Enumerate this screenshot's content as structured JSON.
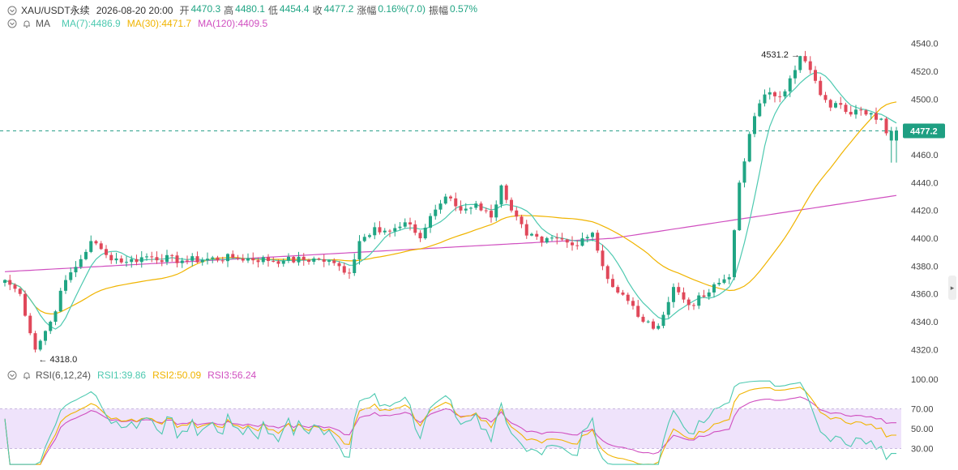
{
  "header": {
    "symbol": "XAU/USDT永续",
    "datetime": "2026-08-20 20:00",
    "open_label": "开",
    "open": "4470.3",
    "high_label": "高",
    "high": "4480.1",
    "low_label": "低",
    "low": "4454.4",
    "close_label": "收",
    "close": "4477.2",
    "change_label": "涨幅",
    "change": "0.16%(7.0)",
    "amp_label": "振幅",
    "amp": "0.57%"
  },
  "ma_legend": {
    "title": "MA",
    "ma7": "MA(7):4486.9",
    "ma30": "MA(30):4471.7",
    "ma120": "MA(120):4409.5"
  },
  "rsi_legend": {
    "title": "RSI(6,12,24)",
    "rsi1": "RSI1:39.86",
    "rsi2": "RSI2:50.09",
    "rsi3": "RSI3:56.24"
  },
  "annotations": {
    "high_marker": "4531.2",
    "low_marker": "4318.0",
    "current_price": "4477.2"
  },
  "icons": {
    "collapse": "chevron-down-icon",
    "bell": "bell-icon",
    "expand": "chevron-right-icon"
  },
  "colors": {
    "up": "#20a584",
    "down": "#e0485a",
    "ma7": "#4dc9b0",
    "ma30": "#f0b400",
    "ma120": "#d04fc0",
    "rsi_band": "#efe3fb"
  },
  "chart_data": {
    "type": "candlestick",
    "price_axis": {
      "ticks": [
        "4540.0",
        "4520.0",
        "4500.0",
        "4480.0",
        "4460.0",
        "4440.0",
        "4420.0",
        "4400.0",
        "4380.0",
        "4360.0",
        "4340.0",
        "4320.0"
      ],
      "ylim": [
        4315,
        4548
      ]
    },
    "rsi_axis": {
      "ticks": [
        "100.00",
        "70.00",
        "50.00",
        "30.00"
      ],
      "ylim": [
        10,
        108
      ],
      "band": [
        30,
        70
      ]
    },
    "waypoints": [
      [
        0,
        4370
      ],
      [
        3,
        4360
      ],
      [
        6,
        4320
      ],
      [
        9,
        4340
      ],
      [
        12,
        4370
      ],
      [
        15,
        4385
      ],
      [
        17,
        4398
      ],
      [
        20,
        4388
      ],
      [
        24,
        4383
      ],
      [
        28,
        4387
      ],
      [
        35,
        4384
      ],
      [
        45,
        4386
      ],
      [
        55,
        4384
      ],
      [
        62,
        4385
      ],
      [
        66,
        4380
      ],
      [
        68,
        4375
      ],
      [
        70,
        4398
      ],
      [
        73,
        4408
      ],
      [
        76,
        4405
      ],
      [
        80,
        4410
      ],
      [
        82,
        4400
      ],
      [
        84,
        4416
      ],
      [
        87,
        4430
      ],
      [
        90,
        4420
      ],
      [
        93,
        4425
      ],
      [
        96,
        4415
      ],
      [
        98,
        4438
      ],
      [
        100,
        4420
      ],
      [
        103,
        4402
      ],
      [
        106,
        4397
      ],
      [
        109,
        4400
      ],
      [
        112,
        4395
      ],
      [
        114,
        4400
      ],
      [
        116,
        4404
      ],
      [
        118,
        4380
      ],
      [
        120,
        4365
      ],
      [
        123,
        4355
      ],
      [
        126,
        4340
      ],
      [
        128,
        4335
      ],
      [
        130,
        4345
      ],
      [
        132,
        4365
      ],
      [
        135,
        4352
      ],
      [
        138,
        4358
      ],
      [
        141,
        4368
      ],
      [
        143,
        4372
      ],
      [
        145,
        4440
      ],
      [
        147,
        4475
      ],
      [
        149,
        4497
      ],
      [
        151,
        4505
      ],
      [
        153,
        4502
      ],
      [
        155,
        4515
      ],
      [
        157,
        4531
      ],
      [
        159,
        4521
      ],
      [
        161,
        4503
      ],
      [
        163,
        4494
      ],
      [
        165,
        4496
      ],
      [
        167,
        4489
      ],
      [
        169,
        4492
      ],
      [
        171,
        4490
      ],
      [
        173,
        4486
      ],
      [
        175,
        4470
      ],
      [
        176,
        4477
      ]
    ]
  }
}
